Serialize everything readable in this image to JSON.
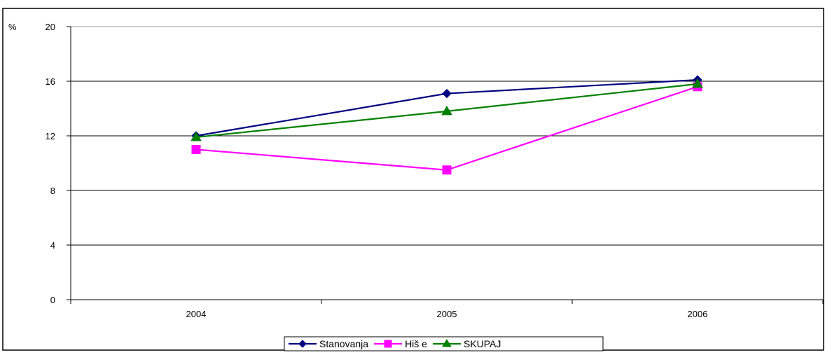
{
  "chart_data": {
    "type": "line",
    "ylabel": "%",
    "ylim": [
      0,
      20
    ],
    "yticks": [
      0,
      4,
      8,
      12,
      16,
      20
    ],
    "categories": [
      "2004",
      "2005",
      "2006"
    ],
    "grid": true,
    "legend_position": "bottom-center",
    "series": [
      {
        "name": "Stanovanja",
        "values": [
          12.0,
          15.1,
          16.1
        ],
        "color": "#000080",
        "marker": "diamond"
      },
      {
        "name": "Hiš e",
        "values": [
          11.0,
          9.5,
          15.6
        ],
        "color": "#ff00ff",
        "marker": "square"
      },
      {
        "name": "SKUPAJ",
        "values": [
          11.9,
          13.8,
          15.8
        ],
        "color": "#008000",
        "marker": "triangle"
      }
    ]
  }
}
